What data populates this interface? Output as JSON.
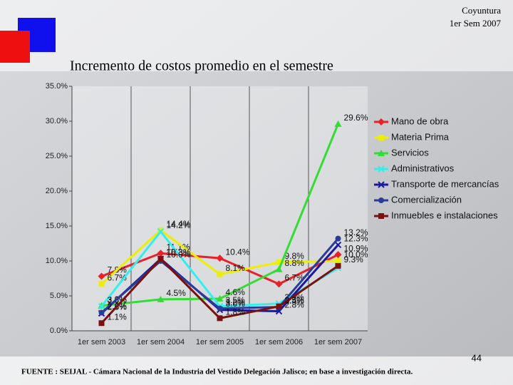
{
  "header": {
    "lines": [
      "Coyuntura",
      "1er Sem 2007"
    ]
  },
  "page_number": "44",
  "footer": "FUENTE :  SEIJAL - Cámara Nacional de la Industria del Vestido Delegación Jalisco;  en base a investigación directa.",
  "chart_data": {
    "type": "line",
    "title": "Incremento de costos promedio en el semestre",
    "categories": [
      "1er sem 2003",
      "1er sem 2004",
      "1er sem 2005",
      "1er sem 2006",
      "1er sem 2007"
    ],
    "ylim": [
      0,
      35
    ],
    "yticks": [
      {
        "value": 0,
        "label": "0.0%"
      },
      {
        "value": 5,
        "label": "5.0%"
      },
      {
        "value": 10,
        "label": "10.0%"
      },
      {
        "value": 15,
        "label": "15.0%"
      },
      {
        "value": 20,
        "label": "20.0%"
      },
      {
        "value": 25,
        "label": "25.0%"
      },
      {
        "value": 30,
        "label": "30.0%"
      },
      {
        "value": 35,
        "label": "35.0%"
      }
    ],
    "grid": true,
    "legend": "right",
    "series": [
      {
        "name": "Mano de obra",
        "color": "#e8202a",
        "marker": "diamond",
        "values": [
          7.8,
          11.1,
          10.4,
          6.7,
          10.9
        ],
        "value_labels": [
          "7.8%",
          "11.1%",
          "10.4%",
          "6.7%",
          "10.9%"
        ]
      },
      {
        "name": "Materia Prima",
        "color": "#eeee00",
        "marker": "square",
        "values": [
          6.7,
          14.4,
          8.1,
          9.8,
          10.0
        ],
        "value_labels": [
          "6.7%",
          "14.4%",
          "8.1%",
          "9.8%",
          "10.0%"
        ]
      },
      {
        "name": "Servicios",
        "color": "#33dd33",
        "marker": "triangle",
        "values": [
          3.6,
          4.5,
          4.6,
          8.8,
          29.6
        ],
        "value_labels": [
          "3.6%",
          "4.5%",
          "4.6%",
          "8.8%",
          "29.6%"
        ]
      },
      {
        "name": "Administrativos",
        "color": "#33eeee",
        "marker": "x",
        "values": [
          3.5,
          14.2,
          3.5,
          3.9,
          9.0
        ],
        "value_labels": [
          "3.5%",
          "14.2%",
          "3.5%",
          "3.9%",
          null
        ]
      },
      {
        "name": "Transporte de mercancías",
        "color": "#1a1aa0",
        "marker": "x",
        "values": [
          2.5,
          10.3,
          3.0,
          2.8,
          12.3
        ],
        "value_labels": [
          "2.5%",
          "10.3%",
          "3.0%",
          "2.8%",
          "12.3%"
        ]
      },
      {
        "name": "Comercialización",
        "color": "#2a3c9a",
        "marker": "circle",
        "values": [
          2.6,
          10.0,
          3.2,
          3.4,
          13.2
        ],
        "value_labels": [
          "2.6%",
          "10.0%",
          "3.2%",
          "3.4%",
          "13.2%"
        ]
      },
      {
        "name": "Inmuebles e instalaciones",
        "color": "#7a1010",
        "marker": "square",
        "values": [
          1.1,
          10.3,
          1.8,
          3.5,
          9.3
        ],
        "value_labels": [
          "1.1%",
          "10.3%",
          "1.8%",
          "3.5%",
          "9.3%"
        ]
      }
    ]
  }
}
